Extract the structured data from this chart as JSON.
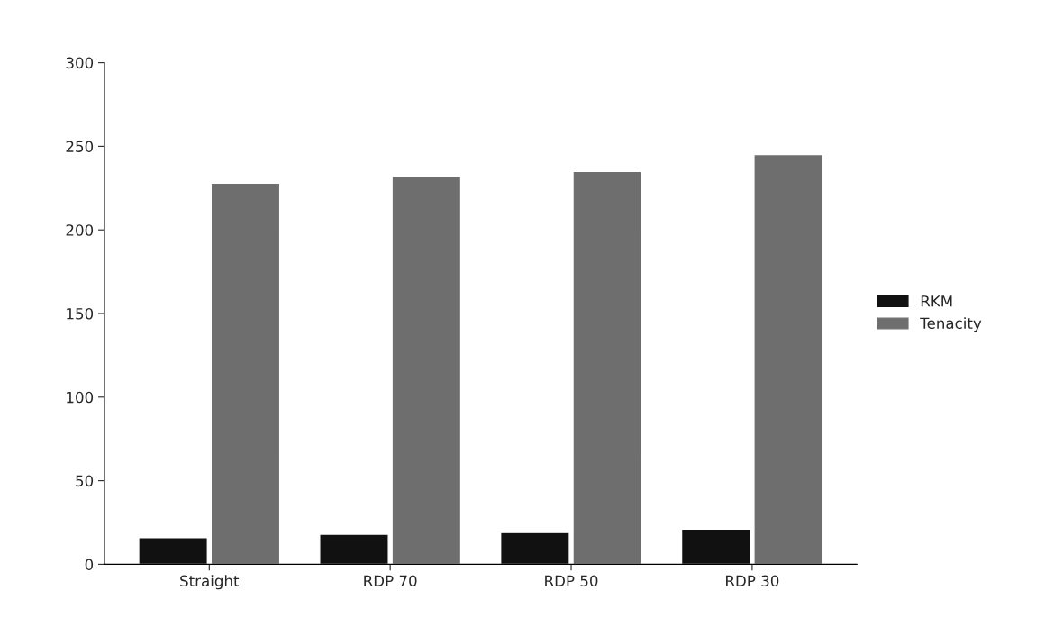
{
  "chart_data": {
    "type": "bar",
    "categories": [
      "Straight",
      "RDP 70",
      "RDP 50",
      "RDP 30"
    ],
    "series": [
      {
        "name": "RKM",
        "color": "#111111",
        "values": [
          16,
          18,
          19,
          21
        ]
      },
      {
        "name": "Tenacity",
        "color": "#6e6e6e",
        "values": [
          228,
          232,
          235,
          245
        ]
      }
    ],
    "ylim": [
      0,
      300
    ],
    "yticks": [
      0,
      50,
      100,
      150,
      200,
      250,
      300
    ],
    "grid": false,
    "legend": "right"
  }
}
